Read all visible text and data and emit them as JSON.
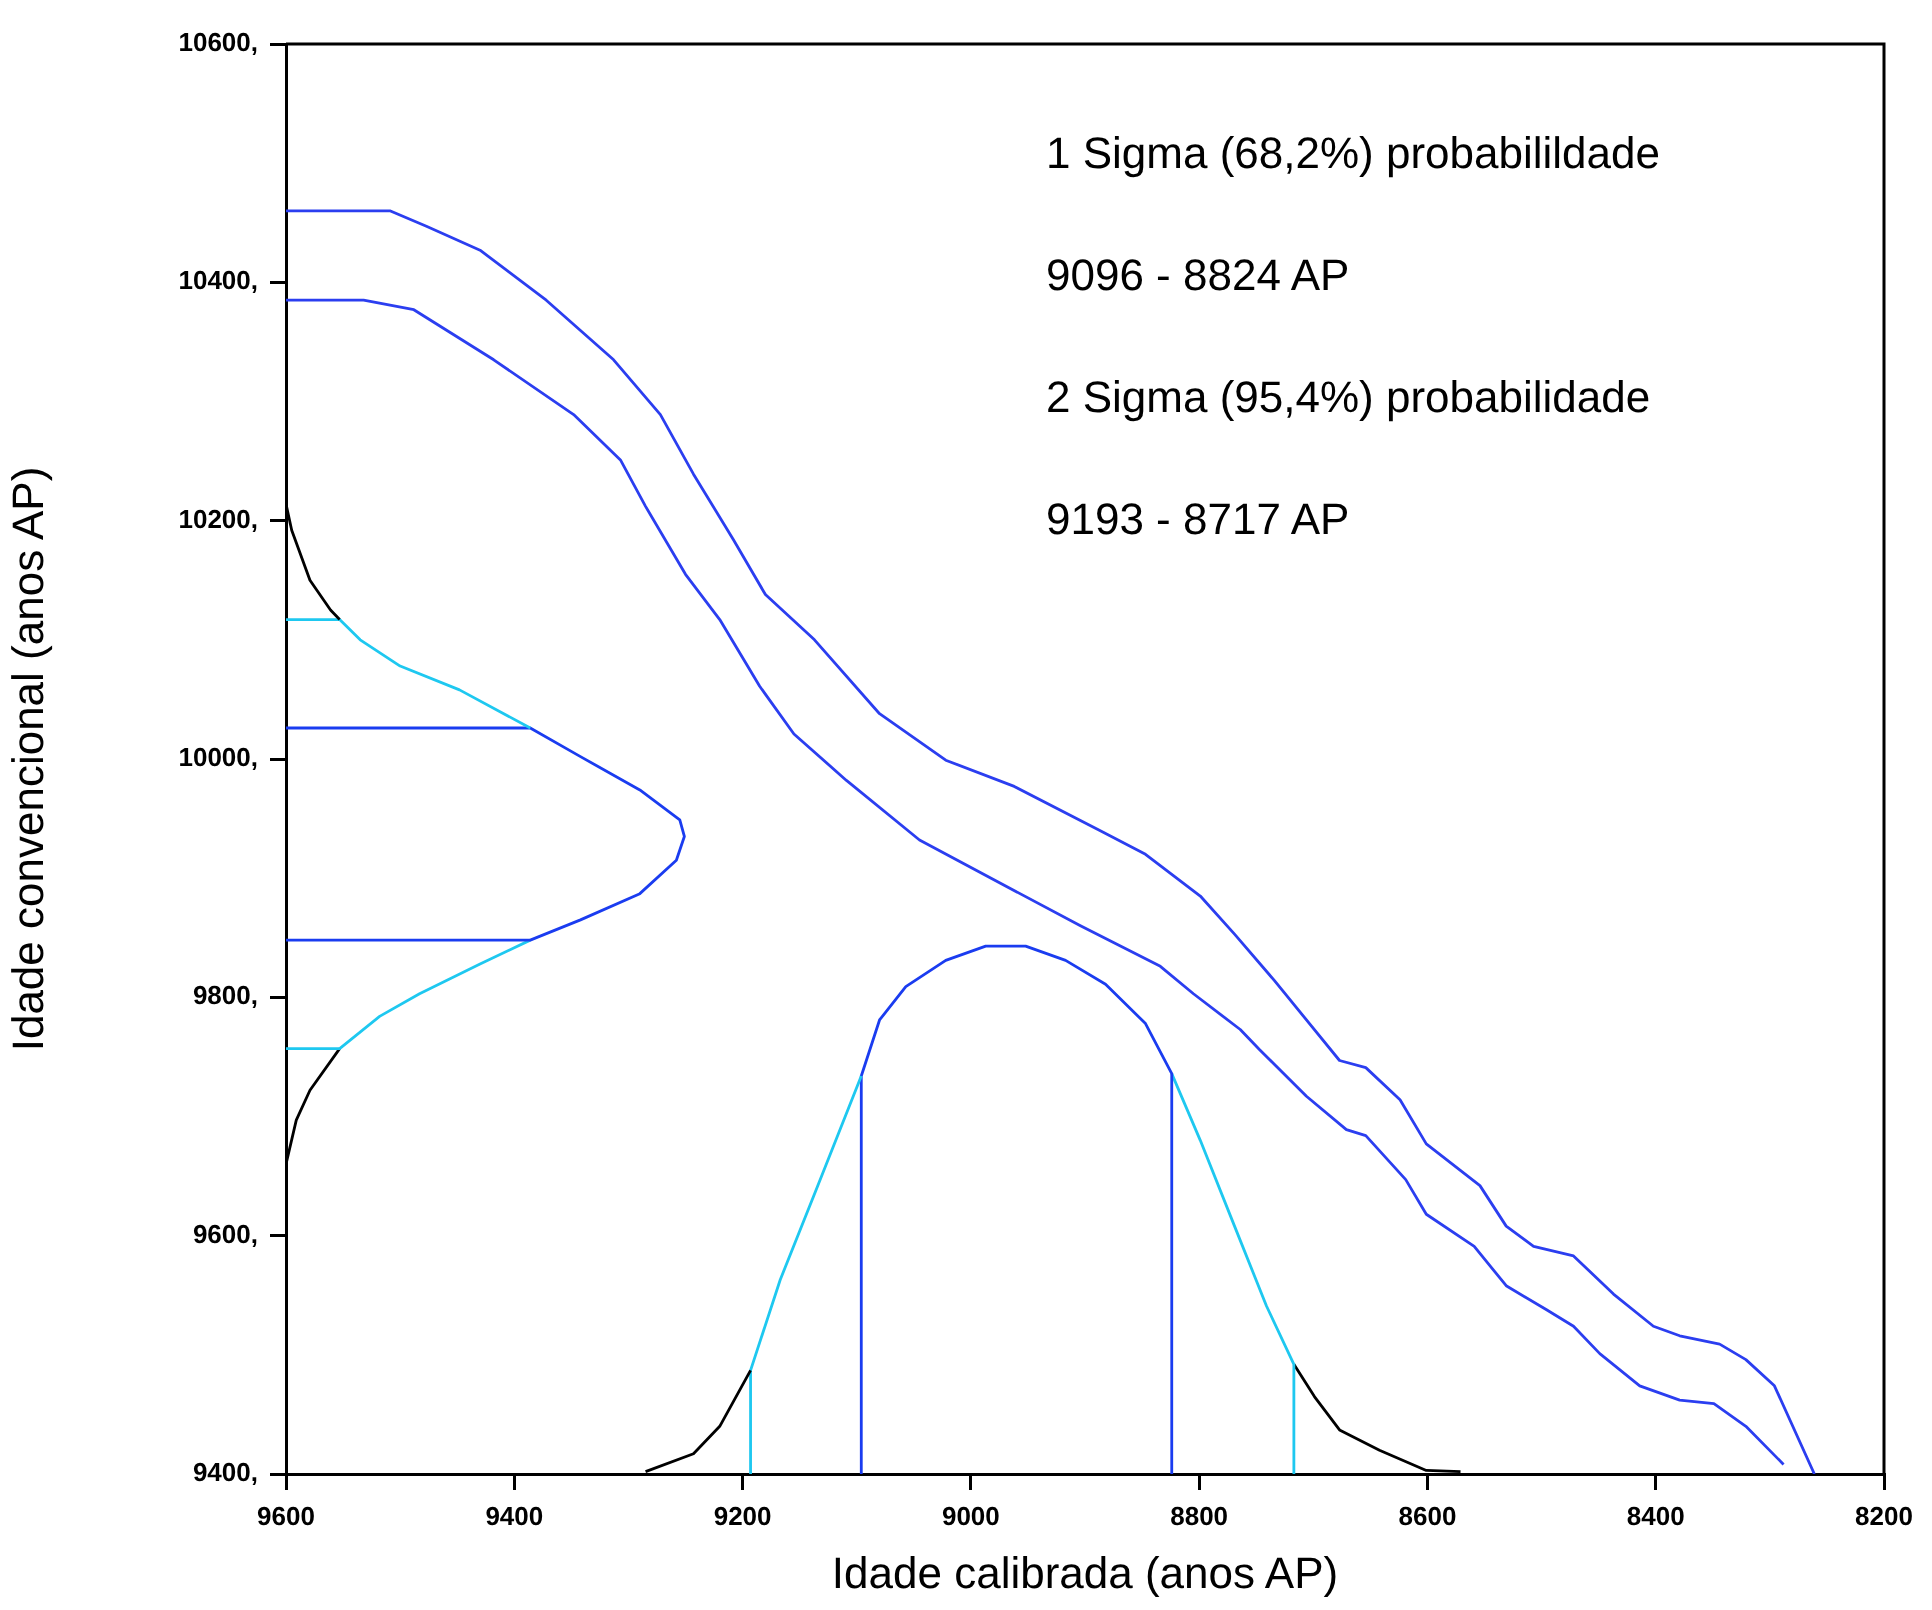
{
  "chart_data": {
    "type": "line",
    "xlabel": "Idade calibrada (anos AP)",
    "ylabel": "Idade convencional (anos AP)",
    "xlim": [
      9600,
      8200
    ],
    "xticks": [
      9600,
      9400,
      9200,
      9000,
      8800,
      8600,
      8400,
      8200
    ],
    "ylim": [
      9400,
      10600
    ],
    "yticks": [
      {
        "value": 9400,
        "label": "9400,"
      },
      {
        "value": 9600,
        "label": "9600,"
      },
      {
        "value": 9800,
        "label": "9800,"
      },
      {
        "value": 10000,
        "label": "10000,"
      },
      {
        "value": 10200,
        "label": "10200,"
      },
      {
        "value": 10400,
        "label": "10400,"
      },
      {
        "value": 10600,
        "label": "10600,"
      }
    ],
    "marker": "none",
    "line_style": "solid",
    "annotations": [
      "1 Sigma (68,2%) probabilildade",
      "9096 - 8824 AP",
      "2 Sigma (95,4%) probabilidade",
      "9193 - 8717 AP"
    ],
    "series": [
      {
        "color": "#2b3ef0",
        "x": [
          9600,
          9509,
          9477,
          9430,
          9372,
          9313,
          9272,
          9243,
          9208,
          9180,
          9137,
          9080,
          9022,
          8962,
          8887,
          8847,
          8799,
          8769,
          8734,
          8677,
          8654,
          8624,
          8601,
          8554,
          8531,
          8507,
          8472,
          8437,
          8402,
          8379,
          8344,
          8321,
          8296,
          8261
        ],
        "values": [
          10460,
          10460,
          10447,
          10427,
          10385,
          10335,
          10289,
          10239,
          10184,
          10138,
          10100,
          10038,
          9999,
          9977,
          9940,
          9920,
          9885,
          9853,
          9814,
          9747,
          9741,
          9714,
          9677,
          9642,
          9608,
          9591,
          9583,
          9551,
          9524,
          9516,
          9509,
          9496,
          9474,
          9400
        ]
      },
      {
        "color": "#2b3ef0",
        "x": [
          9600,
          9532,
          9488,
          9418,
          9348,
          9307,
          9285,
          9250,
          9220,
          9185,
          9155,
          9109,
          9045,
          8904,
          8834,
          8805,
          8764,
          8747,
          8706,
          8671,
          8654,
          8619,
          8601,
          8559,
          8531,
          8496,
          8472,
          8449,
          8414,
          8379,
          8349,
          8321,
          8288
        ],
        "values": [
          10385,
          10385,
          10377,
          10335,
          10289,
          10251,
          10212,
          10155,
          10117,
          10061,
          10021,
          9982,
          9932,
          9860,
          9826,
          9803,
          9773,
          9756,
          9717,
          9689,
          9684,
          9647,
          9618,
          9591,
          9558,
          9538,
          9524,
          9501,
          9474,
          9462,
          9459,
          9440,
          9408
        ]
      },
      {
        "color": "#000000",
        "x": [
          9600,
          9595,
          9579,
          9561,
          9553
        ],
        "values": [
          10214,
          10192,
          10150,
          10125,
          10117
        ]
      },
      {
        "color": "#1ec8f0",
        "x": [
          9600,
          9553,
          9535,
          9500,
          9448,
          9386
        ],
        "values": [
          10117,
          10117,
          10100,
          10078,
          10058,
          10026
        ]
      },
      {
        "color": "#1a3cf0",
        "x": [
          9600,
          9386,
          9342,
          9290,
          9255,
          9251,
          9258,
          9290,
          9342,
          9386,
          9600
        ],
        "values": [
          10026,
          10026,
          10002,
          9974,
          9949,
          9935,
          9915,
          9887,
          9865,
          9848,
          9848
        ]
      },
      {
        "color": "#1ec8f0",
        "x": [
          9386,
          9430,
          9483,
          9518,
          9553,
          9600
        ],
        "values": [
          9848,
          9828,
          9803,
          9784,
          9757,
          9757
        ]
      },
      {
        "color": "#000000",
        "x": [
          9553,
          9579,
          9591,
          9600
        ],
        "values": [
          9757,
          9722,
          9697,
          9660
        ]
      },
      {
        "color": "#000000",
        "x": [
          9285,
          9243,
          9220,
          9193
        ],
        "values": [
          9402,
          9417,
          9440,
          9487
        ]
      },
      {
        "color": "#1ec8f0",
        "x": [
          9193,
          9193,
          9167,
          9137,
          9096
        ],
        "values": [
          9400,
          9487,
          9563,
          9635,
          9734
        ]
      },
      {
        "color": "#1a3cf0",
        "x": [
          9096,
          9096,
          9080,
          9057,
          9022,
          8987,
          8952,
          8917,
          8882,
          8847,
          8824,
          8824
        ],
        "values": [
          9400,
          9734,
          9781,
          9809,
          9831,
          9843,
          9843,
          9831,
          9811,
          9778,
          9736,
          9400
        ]
      },
      {
        "color": "#1ec8f0",
        "x": [
          8824,
          8799,
          8769,
          8741,
          8717,
          8717
        ],
        "values": [
          9736,
          9680,
          9608,
          9541,
          9492,
          9400
        ]
      },
      {
        "color": "#000000",
        "x": [
          8717,
          8699,
          8677,
          8642,
          8601,
          8571
        ],
        "values": [
          9492,
          9465,
          9437,
          9420,
          9403,
          9402
        ]
      }
    ]
  }
}
